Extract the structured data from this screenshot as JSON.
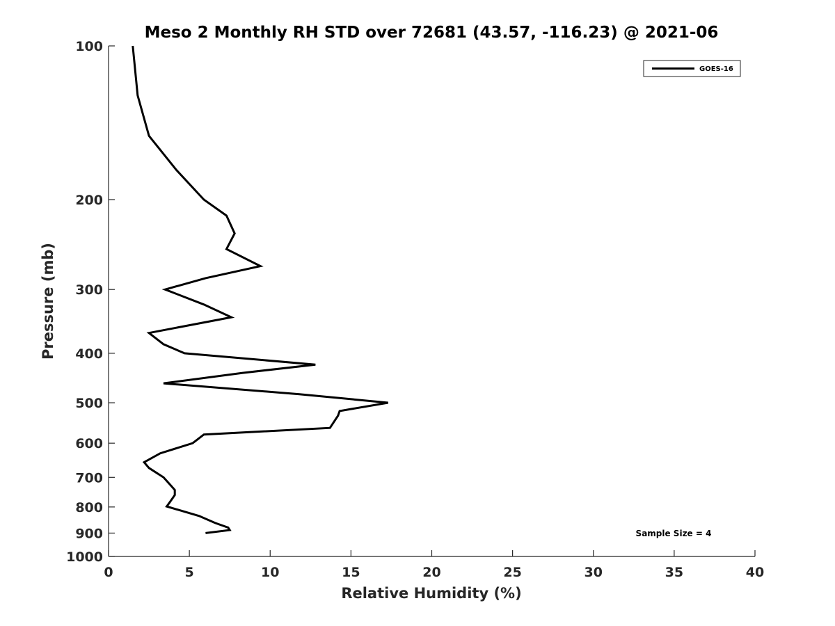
{
  "chart_data": {
    "type": "line",
    "title": "Meso 2 Monthly RH STD over 72681 (43.57, -116.23) @ 2021-06",
    "xlabel": "Relative Humidity (%)",
    "ylabel": "Pressure (mb)",
    "xlim": [
      0,
      40
    ],
    "ylim": [
      100,
      1000
    ],
    "yscale": "log",
    "yreversed": true,
    "xticks": [
      0,
      5,
      10,
      15,
      20,
      25,
      30,
      35,
      40
    ],
    "yticks": [
      100,
      200,
      300,
      400,
      500,
      600,
      700,
      800,
      900,
      1000
    ],
    "legend_position": "top-right",
    "series": [
      {
        "name": "GOES-16",
        "color": "#000000",
        "points": [
          [
            1.5,
            100
          ],
          [
            1.8,
            125
          ],
          [
            2.5,
            150
          ],
          [
            4.2,
            175
          ],
          [
            5.9,
            200
          ],
          [
            7.3,
            215
          ],
          [
            7.8,
            233
          ],
          [
            7.3,
            250
          ],
          [
            9.4,
            270
          ],
          [
            6.0,
            285
          ],
          [
            3.5,
            300
          ],
          [
            5.9,
            321
          ],
          [
            7.6,
            340
          ],
          [
            2.5,
            365
          ],
          [
            3.4,
            384
          ],
          [
            4.7,
            400
          ],
          [
            12.8,
            421
          ],
          [
            8.3,
            437
          ],
          [
            3.4,
            458
          ],
          [
            11.8,
            481
          ],
          [
            17.3,
            500
          ],
          [
            14.3,
            519
          ],
          [
            14.2,
            530
          ],
          [
            13.7,
            560
          ],
          [
            5.9,
            577
          ],
          [
            5.2,
            600
          ],
          [
            3.2,
            628
          ],
          [
            2.2,
            654
          ],
          [
            2.5,
            671
          ],
          [
            3.4,
            700
          ],
          [
            3.8,
            723
          ],
          [
            4.1,
            741
          ],
          [
            4.1,
            758
          ],
          [
            3.8,
            782
          ],
          [
            3.6,
            798
          ],
          [
            5.6,
            833
          ],
          [
            6.6,
            860
          ],
          [
            7.4,
            878
          ],
          [
            7.5,
            888
          ],
          [
            6.0,
            900
          ]
        ]
      }
    ],
    "annotation": "Sample Size = 4"
  }
}
